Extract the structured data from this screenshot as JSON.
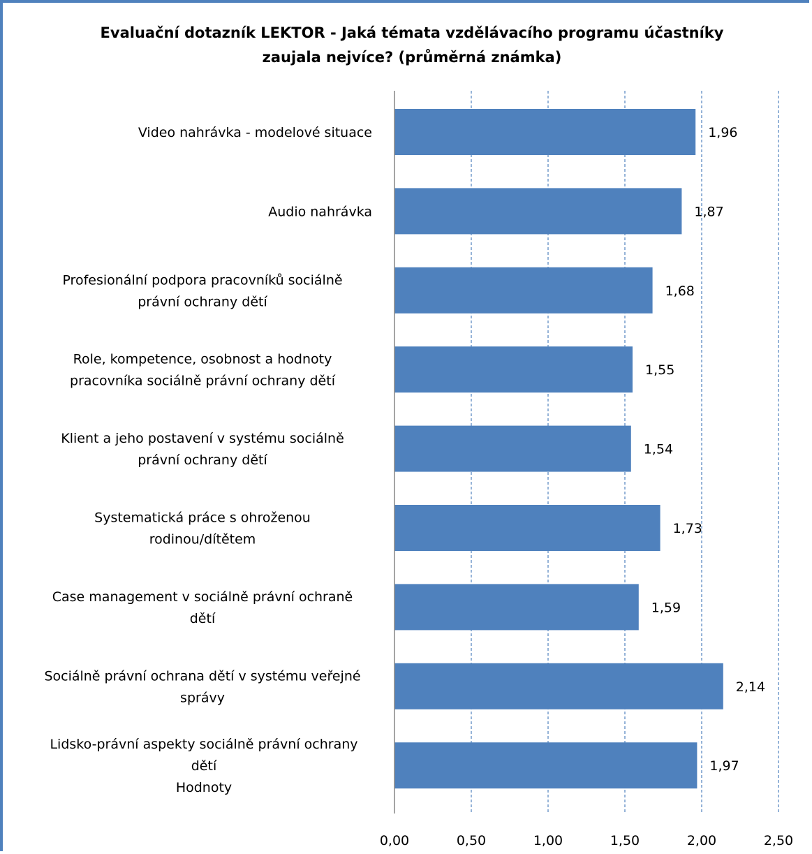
{
  "chart_data": {
    "type": "bar",
    "orientation": "horizontal",
    "title_lines": [
      "Evaluační dotazník LEKTOR - Jaká témata vzdělávacího programu účastníky",
      "zaujala nejvíce? (průměrná známka)"
    ],
    "categories": [
      [
        "Video nahrávka - modelové situace"
      ],
      [
        "Audio nahrávka"
      ],
      [
        "Profesionální podpora pracovníků sociálně",
        "právní ochrany dětí"
      ],
      [
        "Role, kompetence, osobnost a hodnoty",
        "pracovníka sociálně právní ochrany dětí"
      ],
      [
        "Klient a jeho postavení v systému sociálně",
        "právní ochrany dětí"
      ],
      [
        "Systematická práce s ohroženou",
        "rodinou/dítětem"
      ],
      [
        "Case management v sociálně právní ochraně",
        "dětí"
      ],
      [
        "Sociálně právní ochrana dětí v systému veřejné",
        "správy"
      ],
      [
        "Lidsko-právní aspekty sociálně právní ochrany",
        "dětí",
        "Hodnoty"
      ]
    ],
    "values": [
      1.96,
      1.87,
      1.68,
      1.55,
      1.54,
      1.73,
      1.59,
      2.14,
      1.97
    ],
    "value_labels": [
      "1,96",
      "1,87",
      "1,68",
      "1,55",
      "1,54",
      "1,73",
      "1,59",
      "2,14",
      "1,97"
    ],
    "xlim": [
      0,
      2.5
    ],
    "x_ticks": [
      0,
      0.5,
      1,
      1.5,
      2,
      2.5
    ],
    "x_tick_labels": [
      "0,00",
      "0,50",
      "1,00",
      "1,50",
      "2,00",
      "2,50"
    ],
    "grid": "vertical-dashed",
    "legend": "none",
    "colors": {
      "bar": "#4f81bd",
      "grid": "#4f81bd",
      "frame": "#4f81bd",
      "axis": "#868686"
    }
  }
}
